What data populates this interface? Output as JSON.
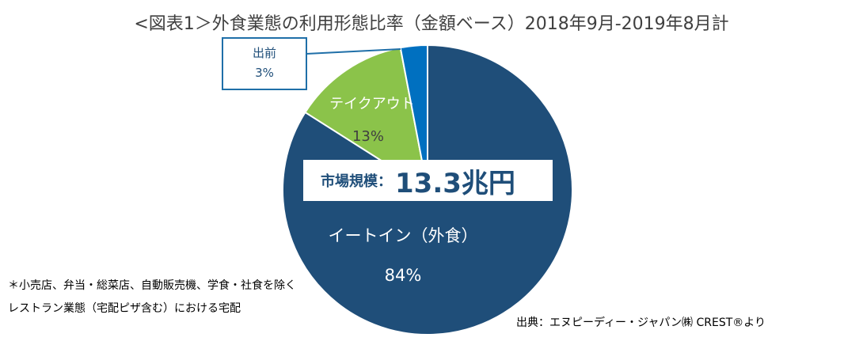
{
  "title": "<図表1＞外食業態の利用形態比率（金額ベース）2018年9月-2019年8月計",
  "market_size": {
    "label": "市場規模：",
    "value": "13.3兆円"
  },
  "footnote": "＊小売店、弁当・総菜店、自動販売機、学食・社食を除くレストラン業態（宅配ピザ含む）における宅配",
  "source": "出典：エヌピーディー・ジャパン㈱ CREST®より",
  "chart_data": {
    "type": "pie",
    "title": "<図表1＞外食業態の利用形態比率（金額ベース）2018年9月-2019年8月計",
    "slices": [
      {
        "label": "イートイン（外食）",
        "value": 84,
        "display": "84%",
        "color": "#1f4e79"
      },
      {
        "label": "テイクアウト",
        "value": 13,
        "display": "13%",
        "color": "#8bc34a"
      },
      {
        "label": "出前",
        "value": 3,
        "display": "3%",
        "color": "#0070c0"
      }
    ],
    "start": "12 o'clock",
    "direction": "clockwise",
    "legend": "none",
    "callout": {
      "slice": "出前",
      "border_color": "#1f6fa8"
    }
  }
}
